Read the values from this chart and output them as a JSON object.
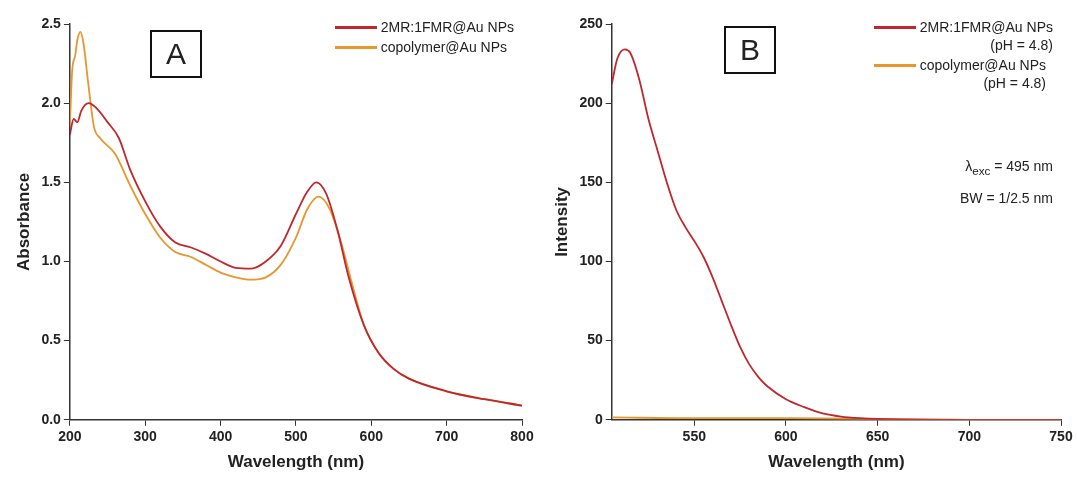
{
  "chart_data": [
    {
      "type": "line",
      "xlabel": "Wavelength (nm)",
      "ylabel": "Absorbance",
      "annotations": [
        "A"
      ],
      "legend": "top right",
      "marker": "none",
      "line_style": "solid",
      "grid": false,
      "xlim": [
        200,
        800
      ],
      "xticks": [
        200,
        300,
        400,
        500,
        600,
        700,
        800
      ],
      "ylim": [
        0,
        2.5
      ],
      "yticks": [
        {
          "value": 0,
          "label": "0.0"
        },
        0.5,
        {
          "value": 1,
          "label": "1.0"
        },
        1.5,
        {
          "value": 2,
          "label": "2.0"
        },
        2.5
      ],
      "series": [
        {
          "name": "2MR:1FMR@Au NPs",
          "color": "#c0272d",
          "x": [
            200,
            205,
            210,
            215,
            225,
            235,
            250,
            265,
            280,
            300,
            320,
            340,
            360,
            380,
            400,
            420,
            440,
            460,
            480,
            500,
            515,
            527,
            540,
            555,
            570,
            590,
            610,
            630,
            650,
            700,
            750,
            800
          ],
          "values": [
            1.8,
            1.9,
            1.88,
            1.95,
            2.0,
            1.97,
            1.88,
            1.78,
            1.58,
            1.38,
            1.22,
            1.12,
            1.09,
            1.05,
            1.0,
            0.96,
            0.955,
            1.0,
            1.1,
            1.3,
            1.44,
            1.5,
            1.43,
            1.2,
            0.9,
            0.6,
            0.42,
            0.32,
            0.26,
            0.18,
            0.13,
            0.09
          ]
        },
        {
          "name": "copolymer@Au NPs",
          "color": "#e8962e",
          "x": [
            200,
            203,
            207,
            210,
            214,
            218,
            225,
            232,
            240,
            260,
            280,
            300,
            320,
            340,
            360,
            380,
            400,
            420,
            440,
            460,
            480,
            500,
            515,
            530,
            545,
            560,
            575,
            590,
            610,
            630,
            650,
            700,
            750,
            800
          ],
          "values": [
            1.85,
            2.2,
            2.3,
            2.4,
            2.45,
            2.38,
            2.1,
            1.85,
            1.78,
            1.68,
            1.48,
            1.3,
            1.15,
            1.06,
            1.03,
            0.98,
            0.93,
            0.9,
            0.885,
            0.9,
            0.98,
            1.15,
            1.33,
            1.41,
            1.33,
            1.12,
            0.85,
            0.6,
            0.42,
            0.32,
            0.26,
            0.18,
            0.13,
            0.09
          ]
        }
      ]
    },
    {
      "type": "line",
      "xlabel": "Wavelength (nm)",
      "ylabel": "Intensity",
      "annotations": [
        "B",
        "λ$_{exc}$ = 495 nm",
        "BW = 1/2.5 nm"
      ],
      "legend": "top right",
      "marker": "none",
      "line_style": "solid",
      "grid": false,
      "xlim": [
        505,
        750
      ],
      "xticks": [
        550,
        600,
        650,
        700,
        750
      ],
      "ylim": [
        0,
        250
      ],
      "yticks": [
        0,
        50,
        100,
        150,
        200,
        250
      ],
      "series": [
        {
          "name": "2MR:1FMR@Au NPs\n(pH = 4.8)",
          "color": "#c0272d",
          "x": [
            505,
            508,
            512,
            515,
            520,
            525,
            530,
            535,
            540,
            545,
            550,
            555,
            560,
            565,
            570,
            575,
            580,
            585,
            590,
            600,
            610,
            620,
            630,
            640,
            650,
            700,
            750
          ],
          "values": [
            212,
            228,
            234,
            232,
            215,
            190,
            170,
            150,
            133,
            122,
            113,
            103,
            90,
            75,
            60,
            46,
            35,
            27,
            21,
            13,
            8,
            4,
            2,
            1,
            0.5,
            0,
            0
          ]
        },
        {
          "name": "copolymer@Au NPs\n(pH = 4.8)",
          "color": "#e8962e",
          "x": [
            505,
            550,
            600,
            650,
            700,
            750
          ],
          "values": [
            1.5,
            1,
            1,
            0.5,
            0,
            0
          ]
        }
      ]
    }
  ]
}
